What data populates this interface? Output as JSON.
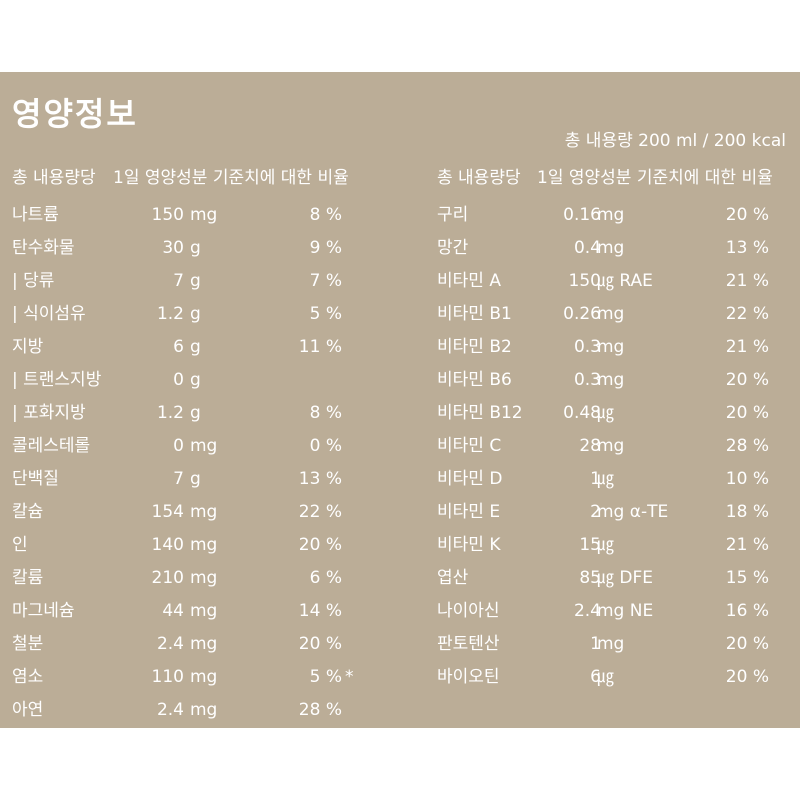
{
  "title": "영양정보",
  "serving": "총 내용량 200 ml /  200 kcal",
  "headers": {
    "name": "총 내용량당",
    "percent": "1일 영양성분 기준치에 대한 비율"
  },
  "left": [
    {
      "name": "나트륨",
      "amount": "150",
      "unit": "mg",
      "pct": "8 %",
      "note": ""
    },
    {
      "name": "탄수화물",
      "amount": "30",
      "unit": "g",
      "pct": "9 %",
      "note": ""
    },
    {
      "name": "| 당류",
      "amount": "7",
      "unit": "g",
      "pct": "7 %",
      "note": ""
    },
    {
      "name": "| 식이섬유",
      "amount": "1.2",
      "unit": "g",
      "pct": "5 %",
      "note": ""
    },
    {
      "name": "지방",
      "amount": "6",
      "unit": "g",
      "pct": "11 %",
      "note": ""
    },
    {
      "name": "| 트랜스지방",
      "amount": "0",
      "unit": "g",
      "pct": "",
      "note": ""
    },
    {
      "name": "|  포화지방",
      "amount": "1.2",
      "unit": "g",
      "pct": "8 %",
      "note": ""
    },
    {
      "name": "콜레스테롤",
      "amount": "0",
      "unit": "mg",
      "pct": "0 %",
      "note": ""
    },
    {
      "name": "단백질",
      "amount": "7",
      "unit": "g",
      "pct": "13 %",
      "note": ""
    },
    {
      "name": "칼슘",
      "amount": "154",
      "unit": "mg",
      "pct": "22 %",
      "note": ""
    },
    {
      "name": "인",
      "amount": "140",
      "unit": "mg",
      "pct": "20 %",
      "note": ""
    },
    {
      "name": "칼륨",
      "amount": "210",
      "unit": "mg",
      "pct": "6 %",
      "note": ""
    },
    {
      "name": "마그네슘",
      "amount": "44",
      "unit": "mg",
      "pct": "14 %",
      "note": ""
    },
    {
      "name": "철분",
      "amount": "2.4",
      "unit": "mg",
      "pct": "20 %",
      "note": ""
    },
    {
      "name": "염소",
      "amount": "110",
      "unit": "mg",
      "pct": "5 %",
      "note": "*"
    },
    {
      "name": "아연",
      "amount": "2.4",
      "unit": "mg",
      "pct": "28 %",
      "note": ""
    }
  ],
  "right": [
    {
      "name": "구리",
      "amount": "0.16",
      "unit": "mg",
      "pct": "20 %"
    },
    {
      "name": "망간",
      "amount": "0.4",
      "unit": "mg",
      "pct": "13 %"
    },
    {
      "name": "비타민 A",
      "amount": "150",
      "unit": "㎍ RAE",
      "pct": "21 %"
    },
    {
      "name": "비타민 B1",
      "amount": "0.26",
      "unit": "mg",
      "pct": "22 %"
    },
    {
      "name": "비타민 B2",
      "amount": "0.3",
      "unit": "mg",
      "pct": "21 %"
    },
    {
      "name": "비타민 B6",
      "amount": "0.3",
      "unit": "mg",
      "pct": "20 %"
    },
    {
      "name": "비타민 B12",
      "amount": "0.48",
      "unit": "㎍",
      "pct": "20 %"
    },
    {
      "name": "비타민 C",
      "amount": "28",
      "unit": "mg",
      "pct": "28 %"
    },
    {
      "name": "비타민 D",
      "amount": "1",
      "unit": "㎍",
      "pct": "10 %"
    },
    {
      "name": "비타민 E",
      "amount": "2",
      "unit": "mg α-TE",
      "pct": "18 %"
    },
    {
      "name": "비타민 K",
      "amount": "15",
      "unit": "㎍",
      "pct": "21 %"
    },
    {
      "name": "엽산",
      "amount": "85",
      "unit": "㎍ DFE",
      "pct": "15 %"
    },
    {
      "name": "나이아신",
      "amount": "2.4",
      "unit": "mg NE",
      "pct": "16 %"
    },
    {
      "name": "판토텐산",
      "amount": "1",
      "unit": "mg",
      "pct": "20 %"
    },
    {
      "name": "바이오틴",
      "amount": "6",
      "unit": "㎍",
      "pct": "20 %"
    }
  ],
  "colors": {
    "panel": "#bbad97",
    "text": "#ffffff"
  }
}
